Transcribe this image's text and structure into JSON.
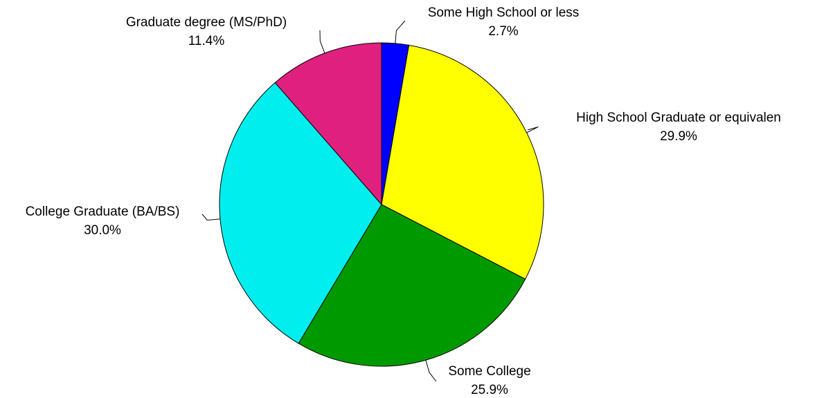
{
  "chart_data": {
    "type": "pie",
    "start_angle_deg": 0,
    "direction": "clockwise",
    "slices": [
      {
        "label": "Some High School or less",
        "value": 2.7,
        "value_label": "2.7%",
        "color": "#0000ff"
      },
      {
        "label": "High School Graduate or equivalen",
        "value": 29.9,
        "value_label": "29.9%",
        "color": "#ffff00"
      },
      {
        "label": "Some College",
        "value": 25.9,
        "value_label": "25.9%",
        "color": "#009900"
      },
      {
        "label": "College Graduate (BA/BS)",
        "value": 30.0,
        "value_label": "30.0%",
        "color": "#00eeee"
      },
      {
        "label": "Graduate degree (MS/PhD)",
        "value": 11.4,
        "value_label": "11.4%",
        "color": "#e0207e"
      }
    ]
  }
}
